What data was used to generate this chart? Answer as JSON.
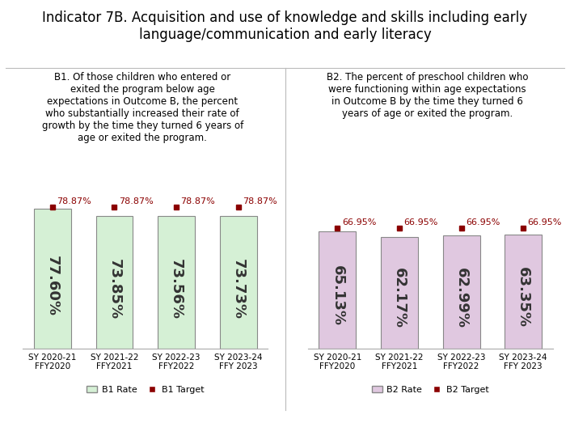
{
  "title": "Indicator 7B. Acquisition and use of knowledge and skills including early\nlanguage/communication and early literacy",
  "b1_subtitle": "B1. Of those children who entered or\nexited the program below age\nexpectations in Outcome B, the percent\nwho substantially increased their rate of\ngrowth by the time they turned 6 years of\nage or exited the program.",
  "b2_subtitle": "B2. The percent of preschool children who\nwere functioning within age expectations\nin Outcome B by the time they turned 6\nyears of age or exited the program.",
  "categories": [
    "SY 2020-21\nFFY2020",
    "SY 2021-22\nFFY2021",
    "SY 2022-23\nFFY2022",
    "SY 2023-24\nFFY 2023"
  ],
  "b1_rates": [
    77.6,
    73.85,
    73.56,
    73.73
  ],
  "b1_target": 78.87,
  "b2_rates": [
    65.13,
    62.17,
    62.99,
    63.35
  ],
  "b2_target": 66.95,
  "b1_bar_color": "#d5f0d5",
  "b1_bar_edge": "#888888",
  "b2_bar_color": "#e0c8e0",
  "b2_bar_edge": "#888888",
  "target_color": "#8b0000",
  "target_marker": "s",
  "bar_text_color": "#333333",
  "title_fontsize": 12,
  "subtitle_fontsize": 8.5,
  "bar_label_fontsize": 13,
  "target_label_fontsize": 8,
  "legend_fontsize": 8,
  "tick_fontsize": 7.5,
  "ylim": [
    0,
    92
  ]
}
